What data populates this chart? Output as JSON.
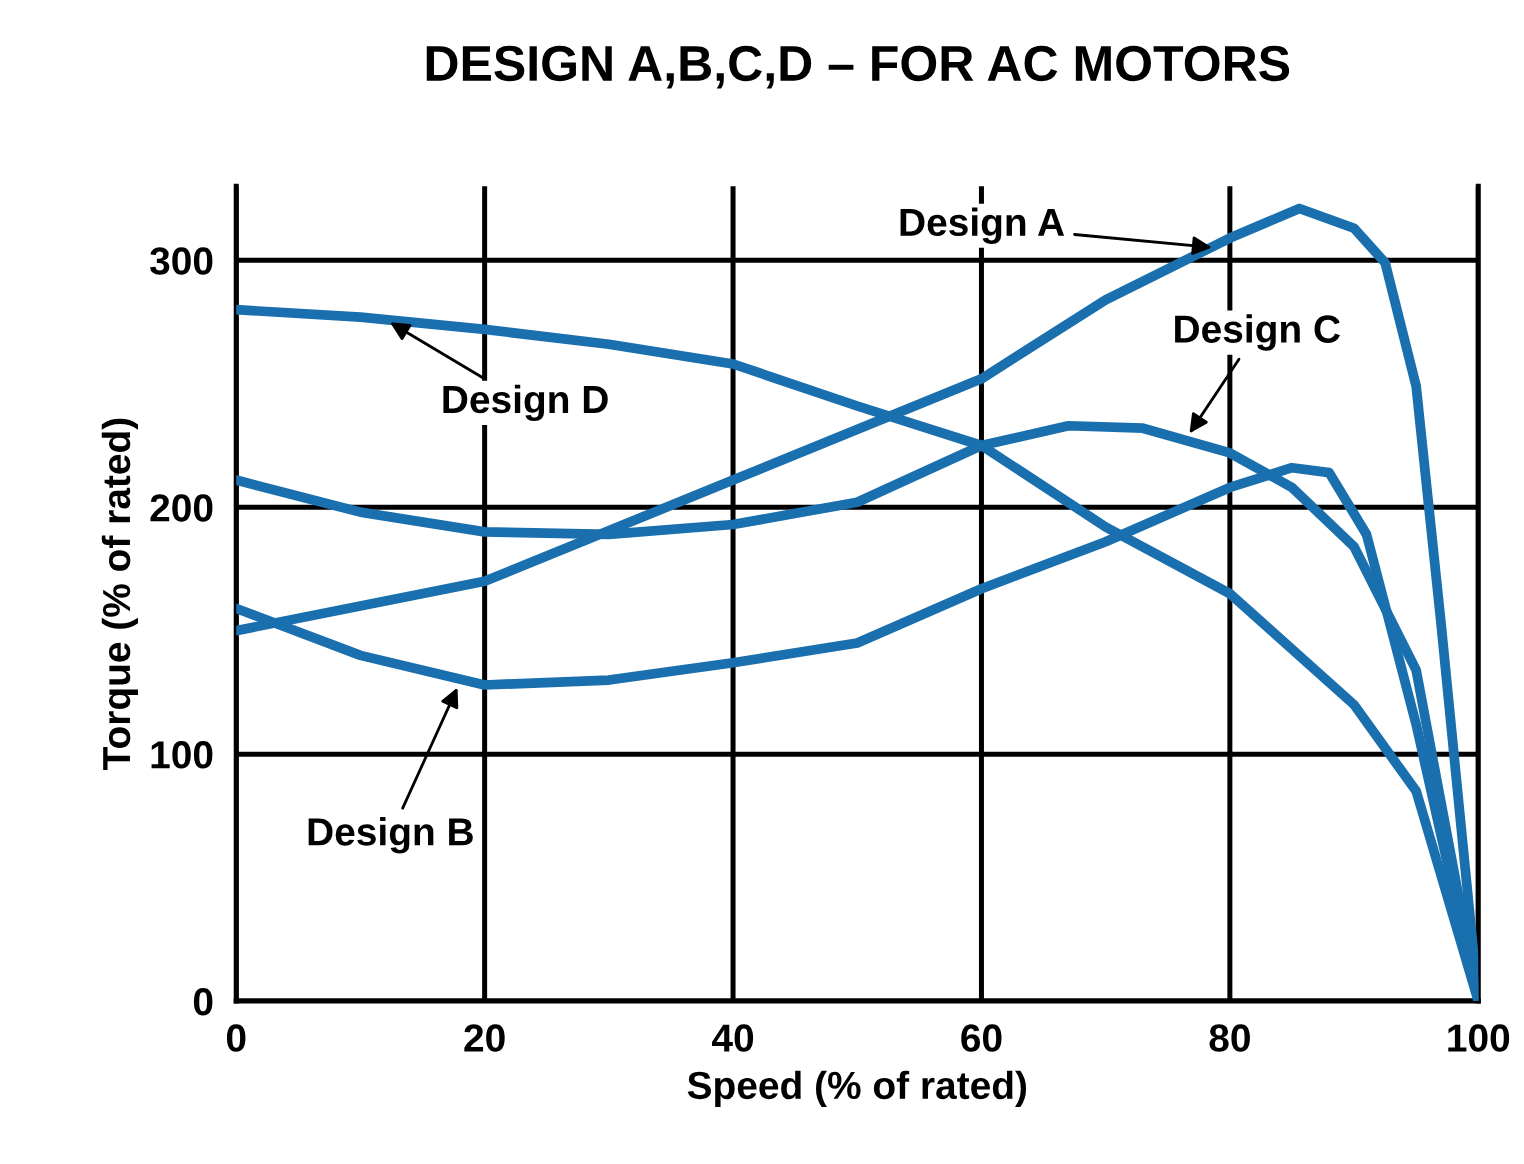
{
  "chart_data": {
    "type": "line",
    "title": "DESIGN A,B,C,D – FOR AC MOTORS",
    "xlabel": "Speed (% of rated)",
    "ylabel": "Torque (% of rated)",
    "xlim": [
      0,
      100
    ],
    "ylim": [
      0,
      330
    ],
    "xticks": [
      0,
      20,
      40,
      60,
      80,
      100
    ],
    "yticks": [
      0,
      100,
      200,
      300
    ],
    "grid": true,
    "marker": "none",
    "line_style": "solid",
    "series": [
      {
        "color": "#1a6fae",
        "x": [
          0,
          20,
          40,
          60,
          70,
          80,
          85.6,
          90,
          92.5,
          95,
          97,
          100
        ],
        "values": [
          150,
          170,
          211,
          252,
          284,
          309,
          321,
          313,
          299,
          249,
          153,
          0
        ]
      },
      {
        "color": "#1a6fae",
        "x": [
          0,
          10,
          20,
          30,
          40,
          50,
          60,
          70,
          80,
          85,
          88,
          91,
          95,
          100
        ],
        "values": [
          159,
          140,
          128,
          130,
          137,
          145,
          167,
          186,
          208,
          216,
          214,
          189,
          112,
          0
        ]
      },
      {
        "color": "#1a6fae",
        "x": [
          0,
          10,
          20,
          30,
          40,
          50,
          60,
          67,
          73,
          80,
          85,
          90,
          95,
          100
        ],
        "values": [
          211,
          198,
          190,
          189,
          193,
          202,
          225,
          233,
          232,
          222,
          208,
          184,
          134,
          0
        ]
      },
      {
        "color": "#1a6fae",
        "x": [
          0,
          10,
          20,
          30,
          40,
          50,
          60,
          70,
          80,
          90,
          95,
          100
        ],
        "values": [
          280,
          277,
          272,
          266,
          258,
          241,
          225,
          192,
          165,
          120,
          85,
          0
        ]
      }
    ],
    "annotations": [
      {
        "text": "Design A",
        "x": 79,
        "y": 305
      },
      {
        "text": "Design C",
        "x": 76.5,
        "y": 228
      },
      {
        "text": "Design D",
        "x": 12,
        "y": 276
      },
      {
        "text": "Design B",
        "x": 18,
        "y": 129
      }
    ]
  }
}
